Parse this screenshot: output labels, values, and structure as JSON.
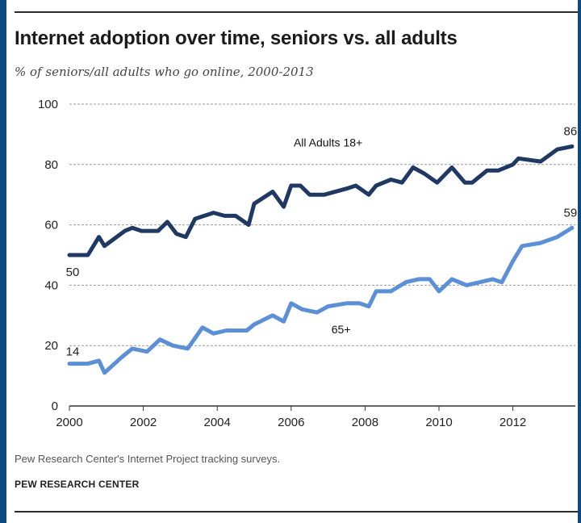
{
  "header": {
    "title": "Internet adoption over time, seniors vs. all adults",
    "subtitle": "% of seniors/all adults who go online, 2000-2013"
  },
  "footer": {
    "source": "Pew Research Center's Internet Project tracking surveys.",
    "org": "PEW RESEARCH CENTER"
  },
  "chart_data": {
    "type": "line",
    "title": "Internet adoption over time, seniors vs. all adults",
    "subtitle": "% of seniors/all adults who go online, 2000-2013",
    "xlabel": "",
    "ylabel": "",
    "xlim": [
      2000,
      2013.7
    ],
    "ylim": [
      0,
      100
    ],
    "x_ticks": [
      2000,
      2002,
      2004,
      2006,
      2008,
      2010,
      2012
    ],
    "y_ticks": [
      0,
      20,
      40,
      60,
      80,
      100
    ],
    "grid": "horizontal dashed",
    "series": [
      {
        "name": "All Adults 18+",
        "color": "#1f3864",
        "start_label": "50",
        "end_label": "86",
        "points": [
          [
            2000.0,
            50
          ],
          [
            2000.5,
            50
          ],
          [
            2000.8,
            56
          ],
          [
            2000.95,
            53
          ],
          [
            2001.5,
            58
          ],
          [
            2001.7,
            59
          ],
          [
            2001.95,
            58
          ],
          [
            2002.4,
            58
          ],
          [
            2002.65,
            61
          ],
          [
            2002.9,
            57
          ],
          [
            2003.15,
            56
          ],
          [
            2003.4,
            62
          ],
          [
            2003.9,
            64
          ],
          [
            2004.2,
            63
          ],
          [
            2004.5,
            63
          ],
          [
            2004.85,
            60
          ],
          [
            2005.0,
            67
          ],
          [
            2005.5,
            71
          ],
          [
            2005.8,
            66
          ],
          [
            2006.0,
            73
          ],
          [
            2006.25,
            73
          ],
          [
            2006.5,
            70
          ],
          [
            2006.9,
            70
          ],
          [
            2007.5,
            72
          ],
          [
            2007.75,
            73
          ],
          [
            2008.1,
            70
          ],
          [
            2008.3,
            73
          ],
          [
            2008.7,
            75
          ],
          [
            2009.0,
            74
          ],
          [
            2009.3,
            79
          ],
          [
            2009.6,
            77
          ],
          [
            2009.95,
            74
          ],
          [
            2010.35,
            79
          ],
          [
            2010.7,
            74
          ],
          [
            2010.9,
            74
          ],
          [
            2011.3,
            78
          ],
          [
            2011.6,
            78
          ],
          [
            2012.0,
            80
          ],
          [
            2012.15,
            82
          ],
          [
            2012.75,
            81
          ],
          [
            2013.2,
            85
          ],
          [
            2013.6,
            86
          ]
        ]
      },
      {
        "name": "65+",
        "color": "#5b8fd6",
        "start_label": "14",
        "end_label": "59",
        "points": [
          [
            2000.0,
            14
          ],
          [
            2000.5,
            14
          ],
          [
            2000.8,
            15
          ],
          [
            2000.95,
            11
          ],
          [
            2001.4,
            16
          ],
          [
            2001.7,
            19
          ],
          [
            2002.1,
            18
          ],
          [
            2002.45,
            22
          ],
          [
            2002.8,
            20
          ],
          [
            2003.2,
            19
          ],
          [
            2003.6,
            26
          ],
          [
            2003.9,
            24
          ],
          [
            2004.25,
            25
          ],
          [
            2004.8,
            25
          ],
          [
            2005.0,
            27
          ],
          [
            2005.5,
            30
          ],
          [
            2005.8,
            28
          ],
          [
            2006.0,
            34
          ],
          [
            2006.3,
            32
          ],
          [
            2006.7,
            31
          ],
          [
            2007.0,
            33
          ],
          [
            2007.5,
            34
          ],
          [
            2007.85,
            34
          ],
          [
            2008.1,
            33
          ],
          [
            2008.3,
            38
          ],
          [
            2008.7,
            38
          ],
          [
            2009.1,
            41
          ],
          [
            2009.45,
            42
          ],
          [
            2009.75,
            42
          ],
          [
            2010.0,
            38
          ],
          [
            2010.35,
            42
          ],
          [
            2010.75,
            40
          ],
          [
            2011.1,
            41
          ],
          [
            2011.45,
            42
          ],
          [
            2011.7,
            41
          ],
          [
            2012.0,
            48
          ],
          [
            2012.25,
            53
          ],
          [
            2012.75,
            54
          ],
          [
            2013.2,
            56
          ],
          [
            2013.6,
            59
          ]
        ]
      }
    ],
    "annotations": [
      {
        "text": "All Adults 18+",
        "x": 2007.0,
        "y": 86
      },
      {
        "text": "65+",
        "x": 2007.35,
        "y": 24
      }
    ]
  }
}
